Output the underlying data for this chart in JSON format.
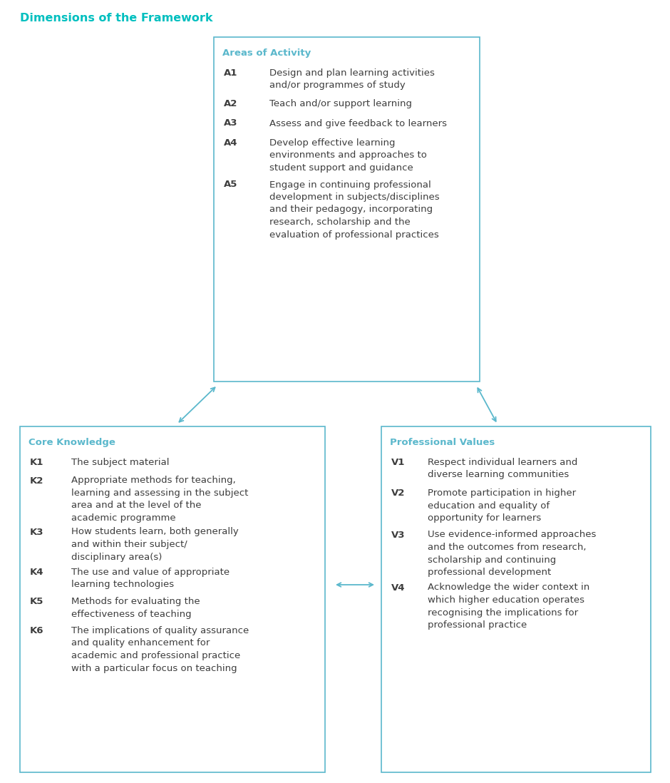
{
  "title": "Dimensions of the Framework",
  "title_color": "#00BFBF",
  "title_fontsize": 11.5,
  "box_edge_color": "#5BB8CC",
  "text_color": "#3D3D3D",
  "bg_color": "#FFFFFF",
  "areas_of_activity": {
    "title": "Areas of Activity",
    "items": [
      {
        "id": "A1",
        "text": "Design and plan learning activities\nand/or programmes of study"
      },
      {
        "id": "A2",
        "text": "Teach and/or support learning"
      },
      {
        "id": "A3",
        "text": "Assess and give feedback to learners"
      },
      {
        "id": "A4",
        "text": "Develop effective learning\nenvironments and approaches to\nstudent support and guidance"
      },
      {
        "id": "A5",
        "text": "Engage in continuing professional\ndevelopment in subjects/disciplines\nand their pedagogy, incorporating\nresearch, scholarship and the\nevaluation of professional practices"
      }
    ]
  },
  "core_knowledge": {
    "title": "Core Knowledge",
    "items": [
      {
        "id": "K1",
        "text": "The subject material"
      },
      {
        "id": "K2",
        "text": "Appropriate methods for teaching,\nlearning and assessing in the subject\narea and at the level of the\nacademic programme"
      },
      {
        "id": "K3",
        "text": "How students learn, both generally\nand within their subject/\ndisciplinary area(s)"
      },
      {
        "id": "K4",
        "text": "The use and value of appropriate\nlearning technologies"
      },
      {
        "id": "K5",
        "text": "Methods for evaluating the\neffectiveness of teaching"
      },
      {
        "id": "K6",
        "text": "The implications of quality assurance\nand quality enhancement for\nacademic and professional practice\nwith a particular focus on teaching"
      }
    ]
  },
  "professional_values": {
    "title": "Professional Values",
    "items": [
      {
        "id": "V1",
        "text": "Respect individual learners and\ndiverse learning communities"
      },
      {
        "id": "V2",
        "text": "Promote participation in higher\neducation and equality of\nopportunity for learners"
      },
      {
        "id": "V3",
        "text": "Use evidence-informed approaches\nand the outcomes from research,\nscholarship and continuing\nprofessional development"
      },
      {
        "id": "V4",
        "text": "Acknowledge the wider context in\nwhich higher education operates\nrecognising the implications for\nprofessional practice"
      }
    ]
  }
}
